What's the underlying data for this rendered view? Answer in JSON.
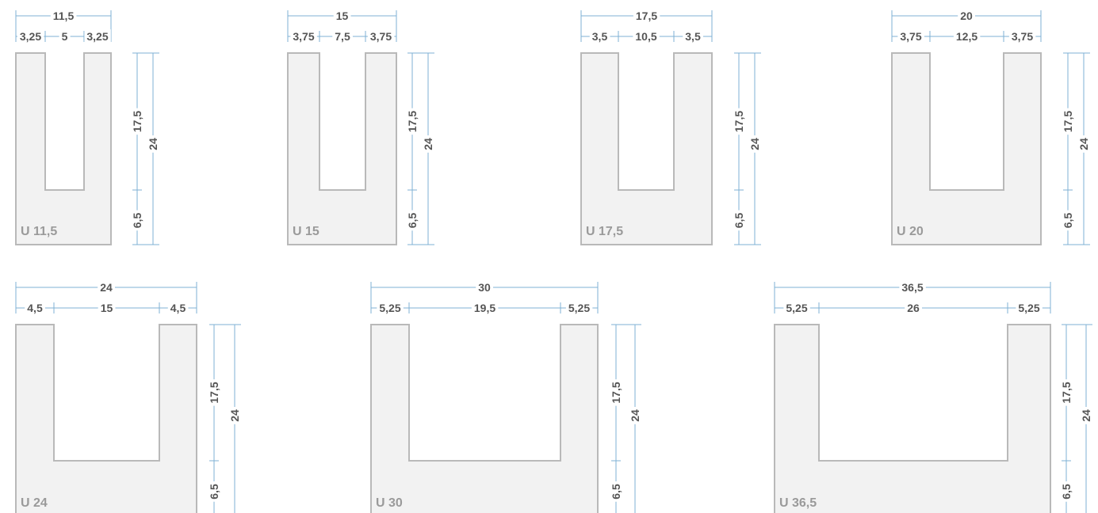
{
  "profiles": [
    {
      "label": "U 11,5",
      "total_width": "11,5",
      "wall_left": "3,25",
      "opening": "5",
      "wall_right": "3,25",
      "height_inner": "17,5",
      "base": "6,5",
      "height_total": "24"
    },
    {
      "label": "U 15",
      "total_width": "15",
      "wall_left": "3,75",
      "opening": "7,5",
      "wall_right": "3,75",
      "height_inner": "17,5",
      "base": "6,5",
      "height_total": "24"
    },
    {
      "label": "U 17,5",
      "total_width": "17,5",
      "wall_left": "3,5",
      "opening": "10,5",
      "wall_right": "3,5",
      "height_inner": "17,5",
      "base": "6,5",
      "height_total": "24"
    },
    {
      "label": "U 20",
      "total_width": "20",
      "wall_left": "3,75",
      "opening": "12,5",
      "wall_right": "3,75",
      "height_inner": "17,5",
      "base": "6,5",
      "height_total": "24"
    },
    {
      "label": "U 24",
      "total_width": "24",
      "wall_left": "4,5",
      "opening": "15",
      "wall_right": "4,5",
      "height_inner": "17,5",
      "base": "6,5",
      "height_total": "24"
    },
    {
      "label": "U 30",
      "total_width": "30",
      "wall_left": "5,25",
      "opening": "19,5",
      "wall_right": "5,25",
      "height_inner": "17,5",
      "base": "6,5",
      "height_total": "24"
    },
    {
      "label": "U 36,5",
      "total_width": "36,5",
      "wall_left": "5,25",
      "opening": "26",
      "wall_right": "5,25",
      "height_inner": "17,5",
      "base": "6,5",
      "height_total": "24"
    }
  ],
  "colors": {
    "dimension_line": "#7fb2d4",
    "dimension_text": "#555555",
    "profile_fill": "#f2f2f2",
    "profile_stroke": "#b9b9b9",
    "profile_label": "#9a9a9a"
  }
}
